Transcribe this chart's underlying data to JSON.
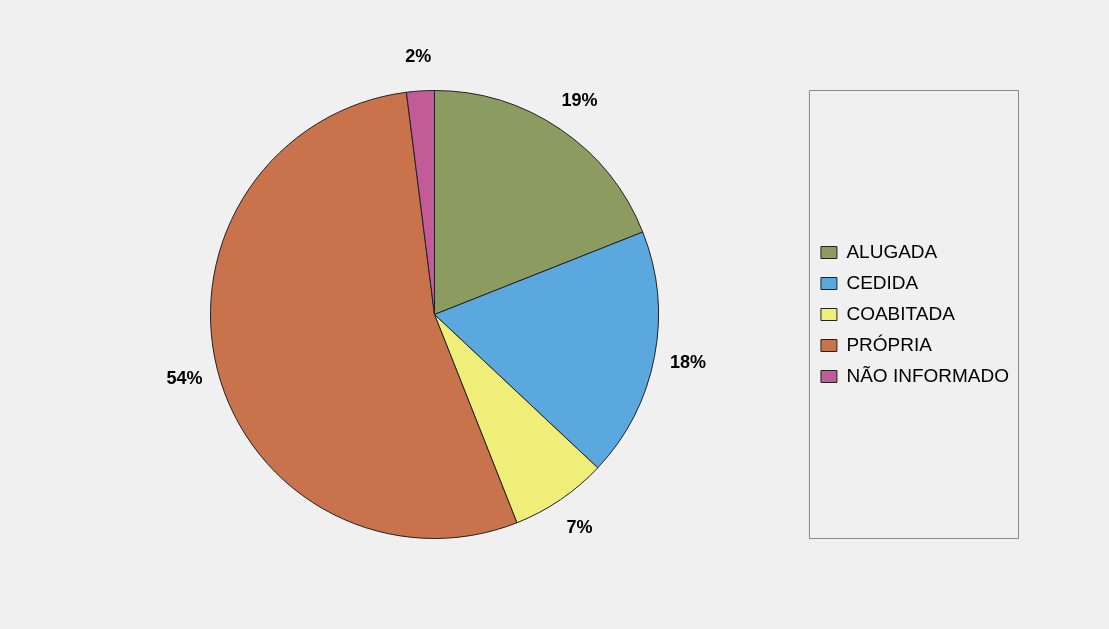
{
  "chart_data": {
    "type": "pie",
    "categories": [
      "ALUGADA",
      "CEDIDA",
      "COABITADA",
      "PRÓPRIA",
      "NÃO INFORMADO"
    ],
    "values": [
      19,
      18,
      7,
      54,
      2
    ],
    "colors": [
      "#8c9c60",
      "#5aa8de",
      "#eeee78",
      "#c8734c",
      "#c25c98"
    ],
    "value_labels": [
      "19%",
      "18%",
      "7%",
      "54%",
      "2%"
    ],
    "legend": "right"
  }
}
